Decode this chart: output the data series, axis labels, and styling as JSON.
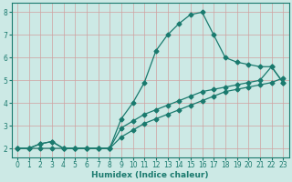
{
  "xlabel": "Humidex (Indice chaleur)",
  "ylabel": "",
  "background_color": "#cce9e5",
  "line_color": "#1a7a6e",
  "xlim": [
    -0.5,
    23.5
  ],
  "ylim": [
    1.6,
    8.4
  ],
  "xticks": [
    0,
    1,
    2,
    3,
    4,
    5,
    6,
    7,
    8,
    9,
    10,
    11,
    12,
    13,
    14,
    15,
    16,
    17,
    18,
    19,
    20,
    21,
    22,
    23
  ],
  "yticks": [
    2,
    3,
    4,
    5,
    6,
    7,
    8
  ],
  "grid_color": "#d0a0a0",
  "curve1_x": [
    0,
    1,
    2,
    3,
    4,
    5,
    6,
    7,
    8,
    9,
    10,
    11,
    12,
    13,
    14,
    15,
    16,
    17,
    18,
    19,
    20,
    21,
    22,
    23
  ],
  "curve1_y": [
    2.0,
    2.0,
    2.2,
    2.3,
    2.0,
    2.0,
    2.0,
    2.0,
    2.0,
    3.3,
    4.0,
    4.9,
    6.3,
    7.0,
    7.5,
    7.9,
    8.0,
    7.0,
    6.0,
    5.8,
    5.7,
    5.6,
    5.6,
    4.9
  ],
  "curve2_x": [
    0,
    1,
    2,
    3,
    4,
    5,
    6,
    7,
    8,
    9,
    10,
    11,
    12,
    13,
    14,
    15,
    16,
    17,
    18,
    19,
    20,
    21,
    22,
    23
  ],
  "curve2_y": [
    2.0,
    2.0,
    2.2,
    2.3,
    2.0,
    2.0,
    2.0,
    2.0,
    2.0,
    2.9,
    3.2,
    3.5,
    3.7,
    3.9,
    4.1,
    4.3,
    4.5,
    4.6,
    4.7,
    4.8,
    4.9,
    5.0,
    5.6,
    4.9
  ],
  "curve3_x": [
    0,
    1,
    2,
    3,
    4,
    5,
    6,
    7,
    8,
    9,
    10,
    11,
    12,
    13,
    14,
    15,
    16,
    17,
    18,
    19,
    20,
    21,
    22,
    23
  ],
  "curve3_y": [
    2.0,
    2.0,
    2.0,
    2.0,
    2.0,
    2.0,
    2.0,
    2.0,
    2.0,
    2.5,
    2.8,
    3.1,
    3.3,
    3.5,
    3.7,
    3.9,
    4.1,
    4.3,
    4.5,
    4.6,
    4.7,
    4.8,
    4.9,
    5.1
  ]
}
